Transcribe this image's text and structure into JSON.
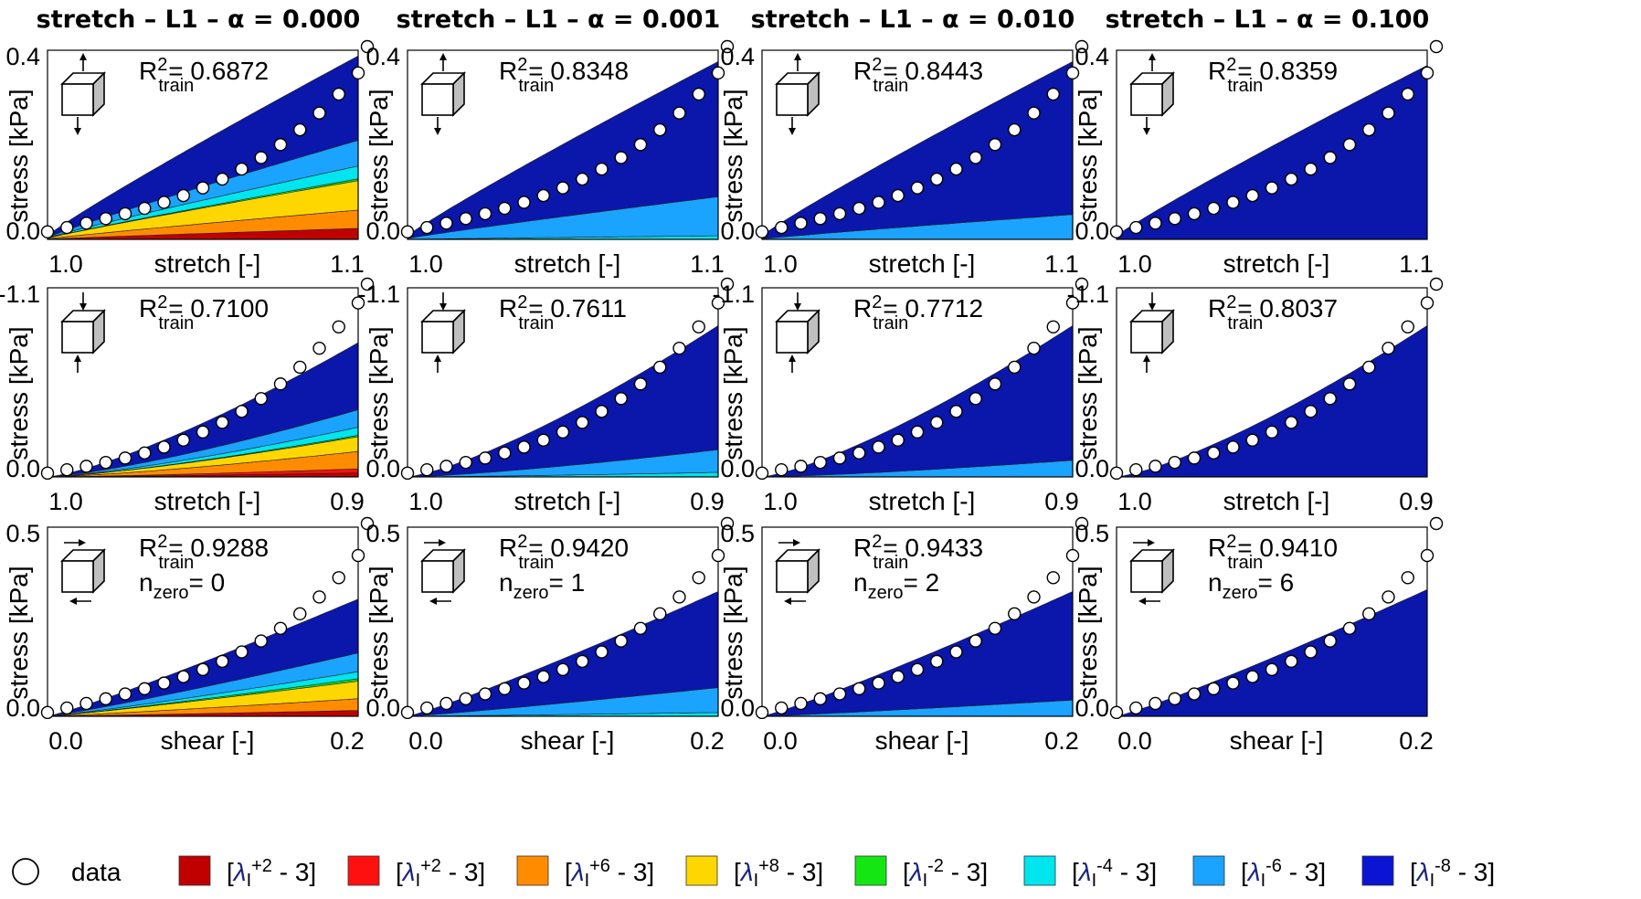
{
  "colors": {
    "c1": "#c00000",
    "c2": "#ff1010",
    "c3": "#ff8c00",
    "c4": "#ffd700",
    "c5": "#14e614",
    "c6": "#00e5ee",
    "c7": "#1aa3ff",
    "c8": "#0a14d2",
    "c8_plot": "#0b16aa"
  },
  "legend": [
    {
      "key": "data",
      "label": "data",
      "type": "circle"
    },
    {
      "key": "c1",
      "pre": "[",
      "sym": "λ",
      "sub": "I",
      "sup": "+2",
      "post": " - 3]"
    },
    {
      "key": "c2",
      "pre": "[",
      "sym": "λ",
      "sub": "I",
      "sup": "+2",
      "post": " - 3]"
    },
    {
      "key": "c3",
      "pre": "[",
      "sym": "λ",
      "sub": "I",
      "sup": "+6",
      "post": " - 3]"
    },
    {
      "key": "c4",
      "pre": "[",
      "sym": "λ",
      "sub": "I",
      "sup": "+8",
      "post": " - 3]"
    },
    {
      "key": "c5",
      "pre": "[",
      "sym": "λ",
      "sub": "I",
      "sup": "-2",
      "post": " - 3]"
    },
    {
      "key": "c6",
      "pre": "[",
      "sym": "λ",
      "sub": "I",
      "sup": "-4",
      "post": " - 3]"
    },
    {
      "key": "c7",
      "pre": "[",
      "sym": "λ",
      "sub": "I",
      "sup": "-6",
      "post": " - 3]"
    },
    {
      "key": "c8",
      "pre": "[",
      "sym": "λ",
      "sub": "I",
      "sup": "-8",
      "post": " - 3]"
    }
  ],
  "rows": [
    {
      "xlabel": "stretch [-]",
      "xticks": [
        "1.0",
        "1.1"
      ],
      "ylabel": "stress [kPa]",
      "yticks": [
        "0.0",
        "0.4"
      ],
      "icon": "tension",
      "data_curve": "convex_tension",
      "data_end": 0.875,
      "data_points": 16
    },
    {
      "xlabel": "stretch [-]",
      "xticks": [
        "1.0",
        "0.9"
      ],
      "ylabel": "stress [kPa]",
      "yticks": [
        "0.0",
        "-1.1"
      ],
      "icon": "compression",
      "data_curve": "convex",
      "data_end": 0.875,
      "data_points": 16
    },
    {
      "xlabel": "shear [-]",
      "xticks": [
        "0.0",
        "0.2"
      ],
      "ylabel": "stress [kPa]",
      "yticks": [
        "0.0",
        "0.5"
      ],
      "icon": "shear",
      "data_curve": "convex_shear",
      "data_end": 0.875,
      "data_points": 16
    }
  ],
  "columns": [
    {
      "title": "stretch – L1 – α = 0.000"
    },
    {
      "title": "stretch – L1 – α = 0.001"
    },
    {
      "title": "stretch – L1 – α = 0.010"
    },
    {
      "title": "stretch – L1 – α = 0.100"
    }
  ],
  "chart_data": [
    {
      "type": "area",
      "title": "stretch – L1 – α = 0.000",
      "subplot": "tension",
      "xlabel": "stretch [-]",
      "ylabel": "stress [kPa]",
      "xlim": [
        1.0,
        1.1
      ],
      "ylim": [
        0.0,
        0.4
      ],
      "r2_label": "R",
      "r2_sup": "2",
      "r2_sub": "train",
      "r2": "= 0.6872",
      "top_end": 0.97,
      "bands": [
        {
          "color": "c1",
          "frac": 0.06
        },
        {
          "color": "c3",
          "frac": 0.1
        },
        {
          "color": "c4",
          "frac": 0.16
        },
        {
          "color": "c5",
          "frac": 0.01
        },
        {
          "color": "c6",
          "frac": 0.07
        },
        {
          "color": "c7",
          "frac": 0.14
        },
        {
          "color": "c8",
          "frac": 0.46
        }
      ]
    },
    {
      "type": "area",
      "title": "stretch – L1 – α = 0.001",
      "subplot": "tension",
      "xlabel": "stretch [-]",
      "ylabel": "stress [kPa]",
      "xlim": [
        1.0,
        1.1
      ],
      "ylim": [
        0.0,
        0.4
      ],
      "r2_label": "R",
      "r2_sup": "2",
      "r2_sub": "train",
      "r2": "= 0.8348",
      "top_end": 0.94,
      "bands": [
        {
          "color": "c6",
          "frac": 0.02
        },
        {
          "color": "c7",
          "frac": 0.22
        },
        {
          "color": "c8",
          "frac": 0.76
        }
      ]
    },
    {
      "type": "area",
      "title": "stretch – L1 – α = 0.010",
      "subplot": "tension",
      "xlabel": "stretch [-]",
      "ylabel": "stress [kPa]",
      "xlim": [
        1.0,
        1.1
      ],
      "ylim": [
        0.0,
        0.4
      ],
      "r2_label": "R",
      "r2_sup": "2",
      "r2_sub": "train",
      "r2": "= 0.8443",
      "top_end": 0.94,
      "bands": [
        {
          "color": "c7",
          "frac": 0.14
        },
        {
          "color": "c8",
          "frac": 0.86
        }
      ]
    },
    {
      "type": "area",
      "title": "stretch – L1 – α = 0.100",
      "subplot": "tension",
      "xlabel": "stretch [-]",
      "ylabel": "stress [kPa]",
      "xlim": [
        1.0,
        1.1
      ],
      "ylim": [
        0.0,
        0.4
      ],
      "r2_label": "R",
      "r2_sup": "2",
      "r2_sub": "train",
      "r2": "= 0.8359",
      "top_end": 0.92,
      "bands": [
        {
          "color": "c8",
          "frac": 1.0
        }
      ]
    },
    {
      "type": "area",
      "subplot": "compression",
      "xlabel": "stretch [-]",
      "ylabel": "stress [kPa]",
      "xlim": [
        1.0,
        0.9
      ],
      "ylim": [
        0.0,
        -1.1
      ],
      "r2_label": "R",
      "r2_sup": "2",
      "r2_sub": "train",
      "r2": "= 0.7100",
      "top_end": 0.71,
      "bands": [
        {
          "color": "c1",
          "frac": 0.03
        },
        {
          "color": "c2",
          "frac": 0.03
        },
        {
          "color": "c3",
          "frac": 0.13
        },
        {
          "color": "c4",
          "frac": 0.11
        },
        {
          "color": "c5",
          "frac": 0.01
        },
        {
          "color": "c6",
          "frac": 0.06
        },
        {
          "color": "c7",
          "frac": 0.13
        },
        {
          "color": "c8",
          "frac": 0.5
        }
      ]
    },
    {
      "type": "area",
      "subplot": "compression",
      "xlabel": "stretch [-]",
      "ylabel": "stress [kPa]",
      "xlim": [
        1.0,
        0.9
      ],
      "ylim": [
        0.0,
        -1.1
      ],
      "r2_label": "R",
      "r2_sup": "2",
      "r2_sub": "train",
      "r2": "= 0.7611",
      "top_end": 0.8,
      "bands": [
        {
          "color": "c6",
          "frac": 0.03
        },
        {
          "color": "c7",
          "frac": 0.15
        },
        {
          "color": "c8",
          "frac": 0.82
        }
      ]
    },
    {
      "type": "area",
      "subplot": "compression",
      "xlabel": "stretch [-]",
      "ylabel": "stress [kPa]",
      "xlim": [
        1.0,
        0.9
      ],
      "ylim": [
        0.0,
        -1.1
      ],
      "r2_label": "R",
      "r2_sup": "2",
      "r2_sub": "train",
      "r2": "= 0.7712",
      "top_end": 0.8,
      "bands": [
        {
          "color": "c7",
          "frac": 0.11
        },
        {
          "color": "c8",
          "frac": 0.89
        }
      ]
    },
    {
      "type": "area",
      "subplot": "compression",
      "xlabel": "stretch [-]",
      "ylabel": "stress [kPa]",
      "xlim": [
        1.0,
        0.9
      ],
      "ylim": [
        0.0,
        -1.1
      ],
      "r2_label": "R",
      "r2_sup": "2",
      "r2_sub": "train",
      "r2": "= 0.8037",
      "top_end": 0.8,
      "bands": [
        {
          "color": "c8",
          "frac": 1.0
        }
      ]
    },
    {
      "type": "area",
      "subplot": "shear",
      "xlabel": "shear [-]",
      "ylabel": "stress [kPa]",
      "xlim": [
        0.0,
        0.2
      ],
      "ylim": [
        0.0,
        0.5
      ],
      "r2_label": "R",
      "r2_sup": "2",
      "r2_sub": "train",
      "r2": "= 0.9288",
      "n_label": "n",
      "n_sub": "zero",
      "n": "= 0",
      "top_end": 0.62,
      "bands": [
        {
          "color": "c1",
          "frac": 0.05
        },
        {
          "color": "c3",
          "frac": 0.1
        },
        {
          "color": "c4",
          "frac": 0.15
        },
        {
          "color": "c5",
          "frac": 0.02
        },
        {
          "color": "c6",
          "frac": 0.06
        },
        {
          "color": "c7",
          "frac": 0.16
        },
        {
          "color": "c8",
          "frac": 0.46
        }
      ]
    },
    {
      "type": "area",
      "subplot": "shear",
      "xlabel": "shear [-]",
      "ylabel": "stress [kPa]",
      "xlim": [
        0.0,
        0.2
      ],
      "ylim": [
        0.0,
        0.5
      ],
      "r2_label": "R",
      "r2_sup": "2",
      "r2_sub": "train",
      "r2": "= 0.9420",
      "n_label": "n",
      "n_sub": "zero",
      "n": "= 1",
      "top_end": 0.66,
      "bands": [
        {
          "color": "c6",
          "frac": 0.03
        },
        {
          "color": "c7",
          "frac": 0.2
        },
        {
          "color": "c8",
          "frac": 0.77
        }
      ]
    },
    {
      "type": "area",
      "subplot": "shear",
      "xlabel": "shear [-]",
      "ylabel": "stress [kPa]",
      "xlim": [
        0.0,
        0.2
      ],
      "ylim": [
        0.0,
        0.5
      ],
      "r2_label": "R",
      "r2_sup": "2",
      "r2_sub": "train",
      "r2": "= 0.9433",
      "n_label": "n",
      "n_sub": "zero",
      "n": "= 2",
      "top_end": 0.66,
      "bands": [
        {
          "color": "c7",
          "frac": 0.13
        },
        {
          "color": "c8",
          "frac": 0.87
        }
      ]
    },
    {
      "type": "area",
      "subplot": "shear",
      "xlabel": "shear [-]",
      "ylabel": "stress [kPa]",
      "xlim": [
        0.0,
        0.2
      ],
      "ylim": [
        0.0,
        0.5
      ],
      "r2_label": "R",
      "r2_sup": "2",
      "r2_sub": "train",
      "r2": "= 0.9410",
      "n_label": "n",
      "n_sub": "zero",
      "n": "= 6",
      "top_end": 0.67,
      "bands": [
        {
          "color": "c8",
          "frac": 1.0
        }
      ]
    }
  ]
}
